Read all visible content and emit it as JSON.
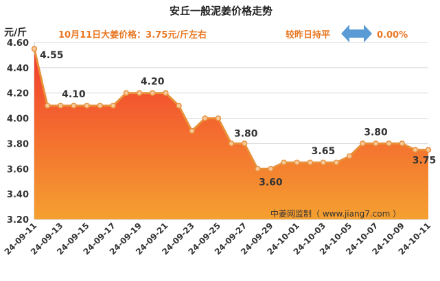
{
  "chart_data": {
    "type": "area",
    "title": "安丘一般泥姜价格走势",
    "ylabel": "元/斤",
    "ylim": [
      3.2,
      4.6
    ],
    "yticks": [
      "3.20",
      "3.40",
      "3.60",
      "3.80",
      "4.00",
      "4.20",
      "4.40",
      "4.60"
    ],
    "grid": "horizontal",
    "x": [
      "24-09-11",
      "24-09-12",
      "24-09-13",
      "24-09-14",
      "24-09-15",
      "24-09-16",
      "24-09-17",
      "24-09-18",
      "24-09-19",
      "24-09-20",
      "24-09-21",
      "24-09-22",
      "24-09-23",
      "24-09-24",
      "24-09-25",
      "24-09-26",
      "24-09-27",
      "24-09-28",
      "24-09-29",
      "24-09-30",
      "24-10-01",
      "24-10-02",
      "24-10-03",
      "24-10-04",
      "24-10-05",
      "24-10-06",
      "24-10-07",
      "24-10-08",
      "24-10-09",
      "24-10-10",
      "24-10-11"
    ],
    "xtick_labels": [
      "24-09-11",
      "24-09-13",
      "24-09-15",
      "24-09-17",
      "24-09-19",
      "24-09-21",
      "24-09-23",
      "24-09-25",
      "24-09-27",
      "24-09-29",
      "24-10-01",
      "24-10-03",
      "24-10-05",
      "24-10-07",
      "24-10-09",
      "24-10-11"
    ],
    "values": [
      4.55,
      4.1,
      4.1,
      4.1,
      4.1,
      4.1,
      4.1,
      4.2,
      4.2,
      4.2,
      4.2,
      4.1,
      3.9,
      4.0,
      4.0,
      3.8,
      3.8,
      3.6,
      3.6,
      3.65,
      3.65,
      3.65,
      3.65,
      3.65,
      3.7,
      3.8,
      3.8,
      3.8,
      3.8,
      3.75,
      3.75
    ],
    "data_labels": [
      {
        "index": 0,
        "text": "4.55"
      },
      {
        "index": 3,
        "text": "4.10"
      },
      {
        "index": 9,
        "text": "4.20"
      },
      {
        "index": 15,
        "text": "3.80"
      },
      {
        "index": 18,
        "text": "3.60"
      },
      {
        "index": 22,
        "text": "3.65"
      },
      {
        "index": 26,
        "text": "3.80"
      },
      {
        "index": 30,
        "text": "3.75"
      }
    ],
    "colors": {
      "line": "#E8903A",
      "marker_fill": "#F6C99A",
      "fill_top": "#F23A2E",
      "fill_bottom": "#F5A030",
      "banner_text": "#E87722",
      "arrow": "#5B9BD5"
    }
  },
  "banner": {
    "price_text": "10月11日大姜价格：3.75元/斤左右",
    "change_label": "较昨日持平",
    "change_value": "0.00%"
  },
  "watermark": "中姜网监制（ www.jiang7.com ）"
}
